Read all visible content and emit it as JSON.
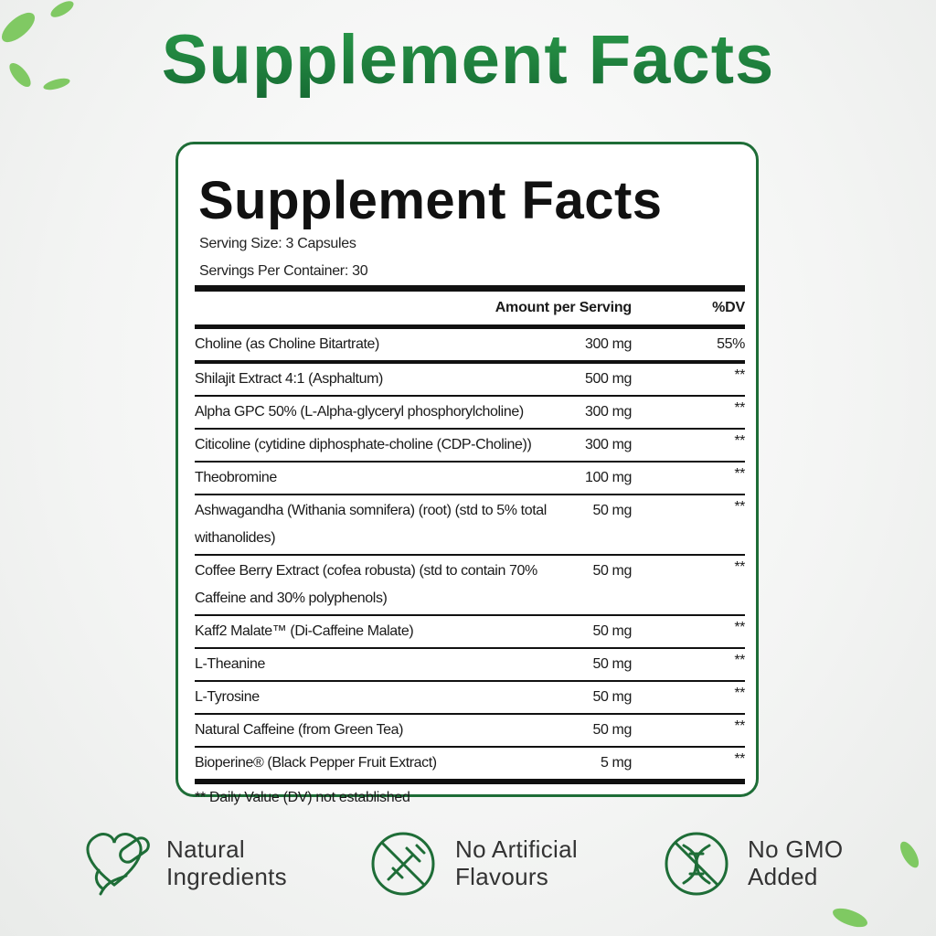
{
  "header": {
    "title": "Supplement Facts"
  },
  "panel": {
    "title": "Supplement Facts",
    "serving_size": "Serving Size: 3 Capsules",
    "servings_per_container": "Servings Per Container: 30",
    "table": {
      "header": {
        "amount": "Amount per Serving",
        "dv": "%DV"
      },
      "rows": [
        [
          "Choline (as Choline Bitartrate)",
          "300 mg",
          "55%"
        ],
        [
          "Shilajit Extract 4:1 (Asphaltum)",
          "500 mg",
          "**"
        ],
        [
          "Alpha GPC 50% (L-Alpha-glyceryl phosphorylcholine)",
          "300 mg",
          "**"
        ],
        [
          "Citicoline (cytidine diphosphate-choline (CDP-Choline))",
          "300 mg",
          "**"
        ],
        [
          "Theobromine",
          "100 mg",
          "**"
        ],
        [
          "Ashwagandha (Withania somnifera) (root) (std to 5% total withanolides)",
          "50 mg",
          "**"
        ],
        [
          "Coffee Berry Extract (cofea robusta) (std to contain 70% Caffeine and 30% polyphenols)",
          "50 mg",
          "**"
        ],
        [
          "Kaff2 Malate™ (Di-Caffeine Malate)",
          "50 mg",
          "**"
        ],
        [
          "L-Theanine",
          "50 mg",
          "**"
        ],
        [
          "L-Tyrosine",
          "50 mg",
          "**"
        ],
        [
          "Natural Caffeine (from Green Tea)",
          "50 mg",
          "**"
        ],
        [
          "Bioperine® (Black Pepper Fruit Extract)",
          "5 mg",
          "**"
        ]
      ]
    },
    "footnote": "** Daily Value (DV) not established"
  },
  "badges": [
    {
      "lines": [
        "Natural",
        "Ingredients"
      ]
    },
    {
      "lines": [
        "No Artificial",
        "Flavours"
      ]
    },
    {
      "lines": [
        "No GMO",
        "Added"
      ]
    }
  ]
}
